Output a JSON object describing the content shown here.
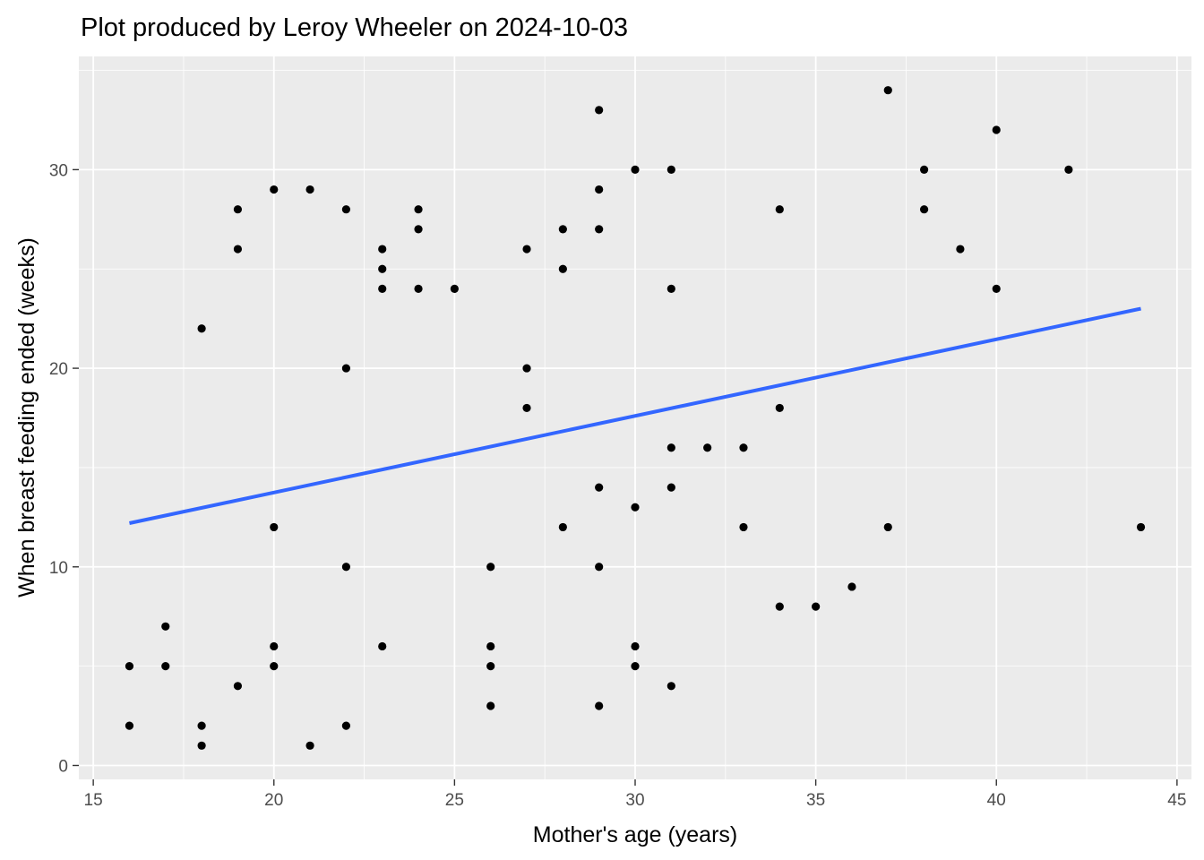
{
  "chart_data": {
    "type": "scatter",
    "title": "Plot produced by Leroy Wheeler on 2024-10-03",
    "xlabel": "Mother's age (years)",
    "ylabel": "When breast feeding ended (weeks)",
    "xlim": [
      14.6,
      45.4
    ],
    "ylim": [
      -0.7,
      35.7
    ],
    "x_ticks": [
      15,
      20,
      25,
      30,
      35,
      40,
      45
    ],
    "y_ticks": [
      0,
      10,
      20,
      30
    ],
    "grid": true,
    "legend": "none",
    "colors": {
      "panel": "#EBEBEB",
      "grid": "#FFFFFF",
      "points": "#000000",
      "trend": "#3366FF",
      "tick_text": "#4D4D4D",
      "tick_mark": "#333333"
    },
    "points": [
      {
        "x": 16,
        "y": 5
      },
      {
        "x": 16,
        "y": 2
      },
      {
        "x": 17,
        "y": 7
      },
      {
        "x": 17,
        "y": 5
      },
      {
        "x": 18,
        "y": 22
      },
      {
        "x": 18,
        "y": 2
      },
      {
        "x": 18,
        "y": 1
      },
      {
        "x": 19,
        "y": 28
      },
      {
        "x": 19,
        "y": 26
      },
      {
        "x": 19,
        "y": 4
      },
      {
        "x": 20,
        "y": 29
      },
      {
        "x": 20,
        "y": 12
      },
      {
        "x": 20,
        "y": 6
      },
      {
        "x": 20,
        "y": 5
      },
      {
        "x": 21,
        "y": 29
      },
      {
        "x": 21,
        "y": 1
      },
      {
        "x": 22,
        "y": 28
      },
      {
        "x": 22,
        "y": 20
      },
      {
        "x": 22,
        "y": 10
      },
      {
        "x": 22,
        "y": 2
      },
      {
        "x": 23,
        "y": 26
      },
      {
        "x": 23,
        "y": 25
      },
      {
        "x": 23,
        "y": 24
      },
      {
        "x": 23,
        "y": 6
      },
      {
        "x": 24,
        "y": 28
      },
      {
        "x": 24,
        "y": 27
      },
      {
        "x": 24,
        "y": 24
      },
      {
        "x": 25,
        "y": 24
      },
      {
        "x": 26,
        "y": 10
      },
      {
        "x": 26,
        "y": 6
      },
      {
        "x": 26,
        "y": 5
      },
      {
        "x": 26,
        "y": 3
      },
      {
        "x": 27,
        "y": 26
      },
      {
        "x": 27,
        "y": 20
      },
      {
        "x": 27,
        "y": 18
      },
      {
        "x": 28,
        "y": 27
      },
      {
        "x": 28,
        "y": 25
      },
      {
        "x": 28,
        "y": 12
      },
      {
        "x": 29,
        "y": 33
      },
      {
        "x": 29,
        "y": 29
      },
      {
        "x": 29,
        "y": 27
      },
      {
        "x": 29,
        "y": 14
      },
      {
        "x": 29,
        "y": 10
      },
      {
        "x": 29,
        "y": 3
      },
      {
        "x": 30,
        "y": 30
      },
      {
        "x": 30,
        "y": 13
      },
      {
        "x": 30,
        "y": 6
      },
      {
        "x": 30,
        "y": 5
      },
      {
        "x": 31,
        "y": 30
      },
      {
        "x": 31,
        "y": 24
      },
      {
        "x": 31,
        "y": 16
      },
      {
        "x": 31,
        "y": 14
      },
      {
        "x": 31,
        "y": 4
      },
      {
        "x": 32,
        "y": 16
      },
      {
        "x": 33,
        "y": 16
      },
      {
        "x": 33,
        "y": 12
      },
      {
        "x": 34,
        "y": 28
      },
      {
        "x": 34,
        "y": 18
      },
      {
        "x": 34,
        "y": 8
      },
      {
        "x": 35,
        "y": 8
      },
      {
        "x": 36,
        "y": 9
      },
      {
        "x": 37,
        "y": 34
      },
      {
        "x": 37,
        "y": 12
      },
      {
        "x": 38,
        "y": 30
      },
      {
        "x": 38,
        "y": 28
      },
      {
        "x": 39,
        "y": 26
      },
      {
        "x": 40,
        "y": 32
      },
      {
        "x": 40,
        "y": 24
      },
      {
        "x": 42,
        "y": 30
      },
      {
        "x": 44,
        "y": 12
      }
    ],
    "trend_line": {
      "x_start": 16,
      "y_start": 12.2,
      "x_end": 44,
      "y_end": 23.0
    }
  }
}
